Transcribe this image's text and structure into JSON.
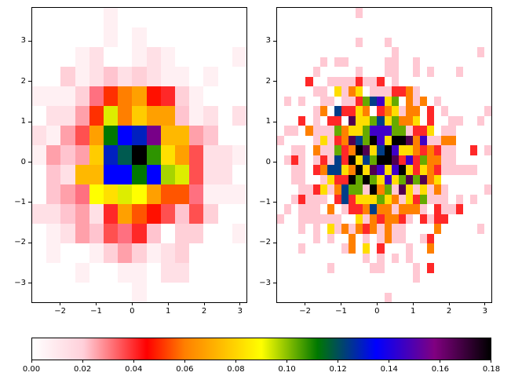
{
  "chart_data": [
    {
      "type": "heatmap",
      "title": "",
      "description": "2D histogram (15x15 bins), colors from shared colormap",
      "xlabel": "",
      "ylabel": "",
      "xlim": [
        -2.8,
        3.2
      ],
      "ylim": [
        -3.49,
        3.84
      ],
      "xticks": [
        -2,
        -1,
        0,
        1,
        2,
        3
      ],
      "yticks": [
        -3,
        -2,
        -1,
        0,
        1,
        2,
        3
      ],
      "grid": false,
      "rows_top_to_bottom": [
        [
          "#ffffff",
          "#ffffff",
          "#ffffff",
          "#ffffff",
          "#ffffff",
          "#fff0f3",
          "#ffffff",
          "#ffffff",
          "#ffffff",
          "#ffffff",
          "#ffffff",
          "#ffffff",
          "#ffffff",
          "#ffffff",
          "#ffffff"
        ],
        [
          "#ffffff",
          "#ffffff",
          "#ffffff",
          "#ffffff",
          "#ffffff",
          "#fff0f3",
          "#ffffff",
          "#fff0f3",
          "#ffffff",
          "#ffffff",
          "#ffffff",
          "#ffffff",
          "#ffffff",
          "#ffffff",
          "#ffffff"
        ],
        [
          "#ffffff",
          "#ffffff",
          "#ffffff",
          "#fff0f3",
          "#ffe0e6",
          "#ffffff",
          "#ffffff",
          "#fff0f3",
          "#ffe0e6",
          "#fff0f3",
          "#ffffff",
          "#ffffff",
          "#ffffff",
          "#ffffff",
          "#fff0f3"
        ],
        [
          "#ffffff",
          "#ffffff",
          "#ffd0d8",
          "#fff0f3",
          "#ffe0e6",
          "#ffc4cf",
          "#ffe0e6",
          "#ffd0d8",
          "#ffe0e6",
          "#fff0f3",
          "#fff0f3",
          "#ffffff",
          "#fff0f3",
          "#ffffff",
          "#ffffff"
        ],
        [
          "#fff0f3",
          "#fff0f3",
          "#fff0f3",
          "#ffd0d8",
          "#ff7080",
          "#ff3000",
          "#ff7f00",
          "#ffa000",
          "#ff1000",
          "#ff2828",
          "#ffd0d8",
          "#fff0f3",
          "#ffffff",
          "#ffffff",
          "#ffffff"
        ],
        [
          "#ffffff",
          "#ffe0e6",
          "#ffe0e6",
          "#ffa0aa",
          "#ff3000",
          "#dded00",
          "#ff7f00",
          "#ffcc00",
          "#ffa000",
          "#ffa000",
          "#ffc4cf",
          "#fff0f3",
          "#ffe0e6",
          "#ffffff",
          "#ffe0e6"
        ],
        [
          "#ffe0e6",
          "#fff0f3",
          "#ffa0aa",
          "#ff5050",
          "#ffa000",
          "#007800",
          "#0000ff",
          "#0020c0",
          "#780088",
          "#ffb800",
          "#ffb800",
          "#ffa0aa",
          "#ffc4cf",
          "#ffffff",
          "#ffffff"
        ],
        [
          "#fff0f3",
          "#ffa0aa",
          "#ffc4cf",
          "#ffa0aa",
          "#ffcc00",
          "#0020c0",
          "#005a50",
          "#000000",
          "#2e9400",
          "#ffe000",
          "#ffa000",
          "#ff5050",
          "#ffe0e6",
          "#ffe0e6",
          "#fff0f3"
        ],
        [
          "#ffffff",
          "#ffc4cf",
          "#ffe0e6",
          "#ffb800",
          "#ffb800",
          "#0000ff",
          "#0000ff",
          "#007800",
          "#0000ff",
          "#a6d400",
          "#dded00",
          "#ff5050",
          "#ffe0e6",
          "#ffe0e6",
          "#ffffff"
        ],
        [
          "#ffffff",
          "#ffc4cf",
          "#ffa0aa",
          "#ff7080",
          "#ffff00",
          "#ffe000",
          "#dded00",
          "#ffff00",
          "#ffa000",
          "#ff5500",
          "#ff5500",
          "#ff7080",
          "#fff0f3",
          "#fff0f3",
          "#fff0f3"
        ],
        [
          "#ffe0e6",
          "#ffe0e6",
          "#ffc4cf",
          "#ffa0aa",
          "#ffe0e6",
          "#ff2828",
          "#ffa000",
          "#ff5500",
          "#ff1000",
          "#ff5050",
          "#ffc4cf",
          "#ff5050",
          "#ffd0d8",
          "#ffffff",
          "#ffffff"
        ],
        [
          "#ffffff",
          "#fff0f3",
          "#ffe0e6",
          "#ffa0aa",
          "#ffc4cf",
          "#ff5050",
          "#ff7080",
          "#ff2828",
          "#ffc4cf",
          "#ffffff",
          "#ffd0d8",
          "#ffd0d8",
          "#ffffff",
          "#ffffff",
          "#fff0f3"
        ],
        [
          "#ffffff",
          "#fff0f3",
          "#ffffff",
          "#ffffff",
          "#fff0f3",
          "#ffd0d8",
          "#ffa0aa",
          "#ffd0d8",
          "#fff0f3",
          "#ffe0e6",
          "#ffd0d8",
          "#ffffff",
          "#ffffff",
          "#ffffff",
          "#ffffff"
        ],
        [
          "#ffffff",
          "#ffffff",
          "#ffffff",
          "#fff0f3",
          "#ffffff",
          "#ffffff",
          "#fff0f3",
          "#fff0f3",
          "#ffffff",
          "#ffe0e6",
          "#ffe0e6",
          "#ffffff",
          "#ffffff",
          "#ffffff",
          "#ffffff"
        ],
        [
          "#ffffff",
          "#ffffff",
          "#ffffff",
          "#ffffff",
          "#ffffff",
          "#ffffff",
          "#ffffff",
          "#fff0f3",
          "#ffffff",
          "#ffffff",
          "#ffffff",
          "#ffffff",
          "#ffffff",
          "#ffffff",
          "#ffffff"
        ]
      ]
    },
    {
      "type": "heatmap",
      "title": "",
      "description": "2D histogram (30x30 bins), discrete colors from shared colormap",
      "xlabel": "",
      "ylabel": "",
      "xlim": [
        -2.8,
        3.2
      ],
      "ylim": [
        -3.49,
        3.84
      ],
      "xticks": [
        -2,
        -1,
        0,
        1,
        2,
        3
      ],
      "yticks": [
        -3,
        -2,
        -1,
        0,
        1,
        2,
        3
      ],
      "grid": false,
      "color_codes": {
        ".": "#ffffff",
        "p": "#ffc8d3",
        "r": "#ff2828",
        "o": "#ff8000",
        "y": "#ffdd00",
        "g": "#66aa00",
        "n": "#003d88",
        "i": "#3f00c8",
        "d": "#500050",
        "k": "#000000"
      },
      "rows_top_to_bottom": [
        "...........p..................",
        "..............................",
        "..............................",
        "...........p...p..............",
        "................p...........p.",
        "......p.pp.....pp..p..........",
        ".....p.....p...pp..p.p...p....",
        "....r..pppprppr.p.............",
        ".....pp.ypoy.ppprrop..........",
        ".p.p..pp.pprgniyg.opo.p.......",
        ".....po.nrryo.roypoo.r.p.....p",
        "...r.p.rr.dyygnygooy.r..pp..p.",
        ".pp.opppgoyygiiiggprry.pp.....",
        "p....pyprodngkiykkdoippoo.....",
        "..pp.oppgrokdynkiyyororpp..r.p",
        ".prp.prpnrkyngkkdrirgoopp.....",
        "..pp.ronnyokydiyikyryorppppp..",
        "..pp..pyrrkgkgyiygdgdoy.......",
        "...ppryponggpkogpdypypop.....p",
        "..prppp.rnryyygyopyrgppp.p.p..",
        ".p.ppp.o.prronoopooop.rppr....",
        "p..pppppp..yporoorp.rprr......",
        "...p.p.ypoporopopp....o.....p.",
        ".....p.p..o.p.popp..pr........",
        "...p.....po.y.r...p..o........",
        "............p.p.p.p...........",
        ".......p.....pp....p.r........",
        "...................p..........",
        "..............................",
        "...............p.............."
      ]
    },
    {
      "type": "colorbar",
      "orientation": "horizontal",
      "range": [
        0.0,
        0.18
      ],
      "ticks": [
        0.0,
        0.02,
        0.04,
        0.06,
        0.08,
        0.1,
        0.12,
        0.14,
        0.16,
        0.18
      ],
      "tick_labels": [
        "0.00",
        "0.02",
        "0.04",
        "0.06",
        "0.08",
        "0.10",
        "0.12",
        "0.14",
        "0.16",
        "0.18"
      ],
      "stops": [
        {
          "v": 0.0,
          "c": "#ffffff"
        },
        {
          "v": 0.02,
          "c": "#ffd0da"
        },
        {
          "v": 0.045,
          "c": "#ff0000"
        },
        {
          "v": 0.06,
          "c": "#ff8000"
        },
        {
          "v": 0.09,
          "c": "#ffff00"
        },
        {
          "v": 0.112,
          "c": "#007800"
        },
        {
          "v": 0.135,
          "c": "#0000ff"
        },
        {
          "v": 0.158,
          "c": "#800080"
        },
        {
          "v": 0.18,
          "c": "#000000"
        }
      ]
    }
  ],
  "axes": {
    "left": {
      "x_tick_labels": [
        "−2",
        "−1",
        "0",
        "1",
        "2",
        "3"
      ],
      "y_tick_labels": [
        "3",
        "2",
        "1",
        "0",
        "−1",
        "−2",
        "−3"
      ]
    },
    "right": {
      "x_tick_labels": [
        "−2",
        "−1",
        "0",
        "1",
        "2",
        "3"
      ],
      "y_tick_labels": [
        "3",
        "2",
        "1",
        "0",
        "−1",
        "−2",
        "−3"
      ]
    },
    "colorbar": {
      "tick_labels": [
        "0.00",
        "0.02",
        "0.04",
        "0.06",
        "0.08",
        "0.10",
        "0.12",
        "0.14",
        "0.16",
        "0.18"
      ]
    }
  }
}
